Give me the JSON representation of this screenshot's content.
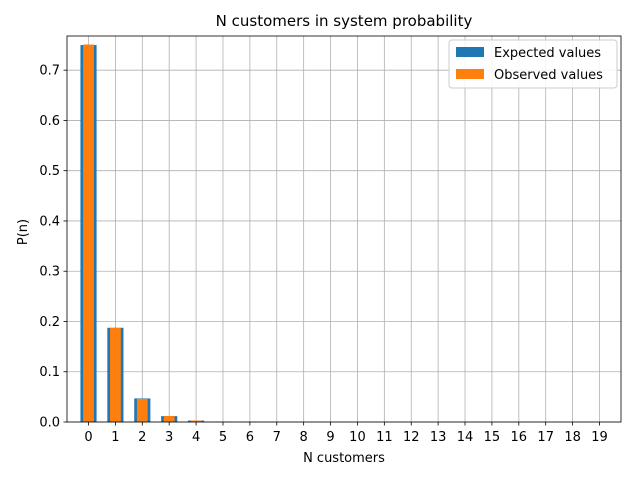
{
  "chart_data": {
    "type": "bar",
    "title": "N customers in system probability",
    "xlabel": "N customers",
    "ylabel": "P(n)",
    "categories": [
      "0",
      "1",
      "2",
      "3",
      "4",
      "5",
      "6",
      "7",
      "8",
      "9",
      "10",
      "11",
      "12",
      "13",
      "14",
      "15",
      "16",
      "17",
      "18",
      "19"
    ],
    "series": [
      {
        "name": "Expected values",
        "color": "#1f77b4",
        "values": [
          0.75,
          0.1875,
          0.0469,
          0.0117,
          0.0029,
          0.0007,
          0.0002,
          5e-05,
          1e-05,
          0.0,
          0.0,
          0.0,
          0.0,
          0.0,
          0.0,
          0.0,
          0.0,
          0.0,
          0.0,
          0.0
        ]
      },
      {
        "name": "Observed values",
        "color": "#ff7f0e",
        "values": [
          0.751,
          0.187,
          0.046,
          0.012,
          0.003,
          0.0008,
          0.0002,
          5e-05,
          1e-05,
          0.0,
          0.0,
          0.0,
          0.0,
          0.0,
          0.0,
          0.0,
          0.0,
          0.0,
          0.0,
          0.0
        ]
      }
    ],
    "ylim": [
      0,
      0.768
    ],
    "yticks": [
      0.0,
      0.1,
      0.2,
      0.3,
      0.4,
      0.5,
      0.6,
      0.7
    ],
    "ytick_labels": [
      "0.0",
      "0.1",
      "0.2",
      "0.3",
      "0.4",
      "0.5",
      "0.6",
      "0.7"
    ],
    "grid": true,
    "legend_position": "top-right"
  }
}
